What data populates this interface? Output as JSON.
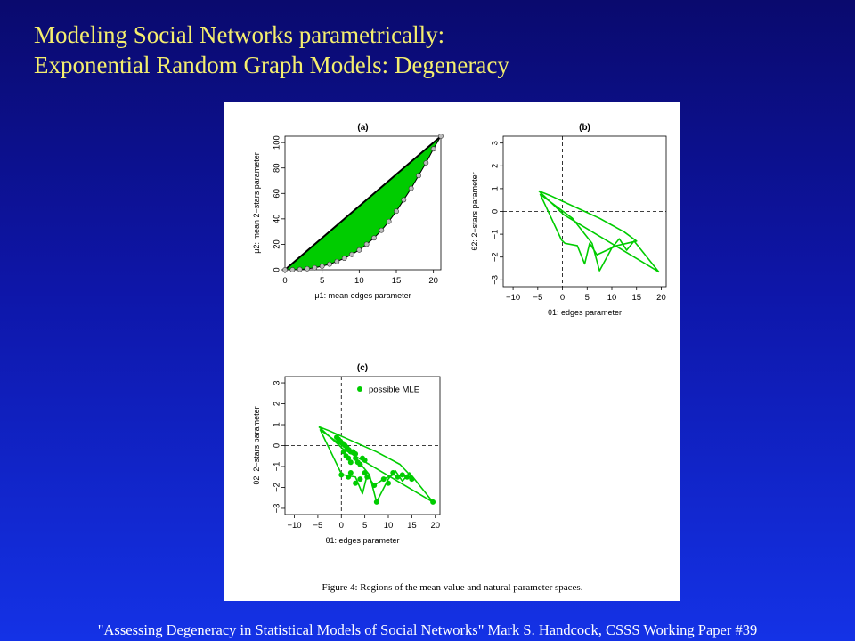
{
  "slide": {
    "title_line1": "Modeling Social Networks parametrically:",
    "title_line2": "Exponential Random Graph Models: Degeneracy",
    "footer": "\"Assessing Degeneracy in Statistical Models of Social Networks\"  Mark S. Handcock, CSSS Working Paper #39"
  },
  "colors": {
    "title": "#f4ee6e",
    "green": "#00cc00",
    "point_fill": "#bbbbbb",
    "axis": "#000000"
  },
  "figure": {
    "caption": "Figure 4: Regions of the mean value and natural parameter spaces."
  },
  "chart_data": [
    {
      "panel": "(a)",
      "type": "area",
      "xlabel": "μ1: mean edges parameter",
      "ylabel": "μ2: mean 2−stars parameter",
      "xlim": [
        0,
        21
      ],
      "ylim": [
        0,
        105
      ],
      "xticks": [
        0,
        5,
        10,
        15,
        20
      ],
      "yticks": [
        0,
        20,
        40,
        60,
        80,
        100
      ],
      "upper_boundary": [
        [
          0,
          0
        ],
        [
          21,
          105
        ]
      ],
      "lower_boundary": [
        [
          0,
          0
        ],
        [
          1,
          0
        ],
        [
          2,
          0.3
        ],
        [
          3,
          0.8
        ],
        [
          4,
          1.6
        ],
        [
          5,
          2.8
        ],
        [
          6,
          4.4
        ],
        [
          7,
          6.5
        ],
        [
          8,
          9
        ],
        [
          9,
          12
        ],
        [
          10,
          15.5
        ],
        [
          11,
          20
        ],
        [
          12,
          25
        ],
        [
          13,
          31
        ],
        [
          14,
          38
        ],
        [
          15,
          46
        ],
        [
          16,
          55
        ],
        [
          17,
          64
        ],
        [
          18,
          74
        ],
        [
          19,
          84
        ],
        [
          20,
          95
        ],
        [
          21,
          105
        ]
      ],
      "points": [
        [
          0,
          0
        ],
        [
          1,
          0
        ],
        [
          2,
          0.3
        ],
        [
          3,
          0.8
        ],
        [
          4,
          1.6
        ],
        [
          5,
          2.8
        ],
        [
          6,
          4.4
        ],
        [
          7,
          6.5
        ],
        [
          8,
          9
        ],
        [
          9,
          12
        ],
        [
          10,
          15.5
        ],
        [
          11,
          20
        ],
        [
          12,
          25
        ],
        [
          13,
          31
        ],
        [
          14,
          38
        ],
        [
          15,
          46
        ],
        [
          16,
          55
        ],
        [
          17,
          64
        ],
        [
          18,
          74
        ],
        [
          19,
          84
        ],
        [
          20,
          95
        ],
        [
          21,
          105
        ]
      ]
    },
    {
      "panel": "(b)",
      "type": "line",
      "xlabel": "θ1: edges parameter",
      "ylabel": "θ2: 2−stars parameter",
      "xlim": [
        -12,
        21
      ],
      "ylim": [
        -3.3,
        3.3
      ],
      "xticks": [
        -10,
        -5,
        0,
        5,
        10,
        15,
        20
      ],
      "yticks": [
        -3,
        -2,
        -1,
        0,
        1,
        2,
        3
      ],
      "reference_lines": {
        "x": 0,
        "y": 0
      },
      "path": [
        [
          -4.8,
          0.9
        ],
        [
          -2.5,
          0.7
        ],
        [
          0,
          0.45
        ],
        [
          2.5,
          0.2
        ],
        [
          5,
          -0.05
        ],
        [
          7.5,
          -0.3
        ],
        [
          10,
          -0.6
        ],
        [
          12.5,
          -0.9
        ],
        [
          15,
          -1.3
        ],
        [
          11,
          -1.5
        ],
        [
          9,
          -1.7
        ],
        [
          7,
          -1.9
        ],
        [
          5.5,
          -1.4
        ],
        [
          4.5,
          -2.3
        ],
        [
          3,
          -1.5
        ],
        [
          0.5,
          -1.4
        ],
        [
          -0.2,
          -1.25
        ],
        [
          -4.5,
          0.75
        ],
        [
          2,
          -0.3
        ],
        [
          6,
          -1.4
        ],
        [
          7.5,
          -2.6
        ],
        [
          10,
          -1.6
        ],
        [
          11.5,
          -1.2
        ],
        [
          13,
          -1.7
        ],
        [
          14.5,
          -1.3
        ],
        [
          19.5,
          -2.65
        ],
        [
          0.3,
          -0.15
        ],
        [
          -4.8,
          0.9
        ]
      ]
    },
    {
      "panel": "(c)",
      "type": "scatter",
      "xlabel": "θ1: edges parameter",
      "ylabel": "θ2: 2−stars parameter",
      "xlim": [
        -12,
        21
      ],
      "ylim": [
        -3.3,
        3.3
      ],
      "xticks": [
        -10,
        -5,
        0,
        5,
        10,
        15,
        20
      ],
      "yticks": [
        -3,
        -2,
        -1,
        0,
        1,
        2,
        3
      ],
      "reference_lines": {
        "x": 0,
        "y": 0
      },
      "legend": {
        "label": "possible MLE",
        "position": "top-right"
      },
      "series": [
        {
          "name": "possible MLE",
          "points": [
            [
              -1,
              0.4
            ],
            [
              -0.6,
              0.3
            ],
            [
              -0.2,
              0.2
            ],
            [
              0.3,
              0.1
            ],
            [
              0.8,
              0
            ],
            [
              1.2,
              -0.1
            ],
            [
              1.6,
              -0.2
            ],
            [
              2,
              -0.3
            ],
            [
              2.5,
              -0.3
            ],
            [
              3,
              -0.4
            ],
            [
              0.5,
              -0.3
            ],
            [
              1,
              -0.5
            ],
            [
              1.5,
              -0.6
            ],
            [
              2,
              -0.8
            ],
            [
              3,
              -0.6
            ],
            [
              3.5,
              -0.8
            ],
            [
              4,
              -0.9
            ],
            [
              4.5,
              -0.6
            ],
            [
              5,
              -0.7
            ],
            [
              0,
              -1.4
            ],
            [
              1.5,
              -1.5
            ],
            [
              2,
              -1.3
            ],
            [
              3,
              -1.8
            ],
            [
              4,
              -1.6
            ],
            [
              5,
              -1.3
            ],
            [
              5.5,
              -1.5
            ],
            [
              7,
              -1.9
            ],
            [
              7.5,
              -2.7
            ],
            [
              9,
              -1.6
            ],
            [
              10,
              -1.8
            ],
            [
              11,
              -1.3
            ],
            [
              12,
              -1.5
            ],
            [
              13,
              -1.4
            ],
            [
              14,
              -1.5
            ],
            [
              15,
              -1.6
            ],
            [
              19.5,
              -2.7
            ]
          ]
        }
      ],
      "boundary": [
        [
          -4.8,
          0.9
        ],
        [
          -2.5,
          0.7
        ],
        [
          0,
          0.45
        ],
        [
          2.5,
          0.2
        ],
        [
          5,
          -0.05
        ],
        [
          7.5,
          -0.3
        ],
        [
          10,
          -0.6
        ],
        [
          12.5,
          -0.9
        ],
        [
          15,
          -1.5
        ],
        [
          11,
          -1.4
        ],
        [
          9,
          -1.6
        ],
        [
          7,
          -1.9
        ],
        [
          5.5,
          -1.4
        ],
        [
          4.5,
          -2.3
        ],
        [
          3,
          -1.5
        ],
        [
          0.5,
          -1.4
        ],
        [
          -0.2,
          -1.25
        ],
        [
          -4.5,
          0.75
        ],
        [
          2,
          -0.3
        ],
        [
          6,
          -1.4
        ],
        [
          7.5,
          -2.7
        ],
        [
          10,
          -1.6
        ],
        [
          11.5,
          -1.2
        ],
        [
          13,
          -1.7
        ],
        [
          14.5,
          -1.3
        ],
        [
          19.5,
          -2.7
        ],
        [
          0.3,
          -0.15
        ],
        [
          -4.8,
          0.9
        ]
      ]
    }
  ]
}
